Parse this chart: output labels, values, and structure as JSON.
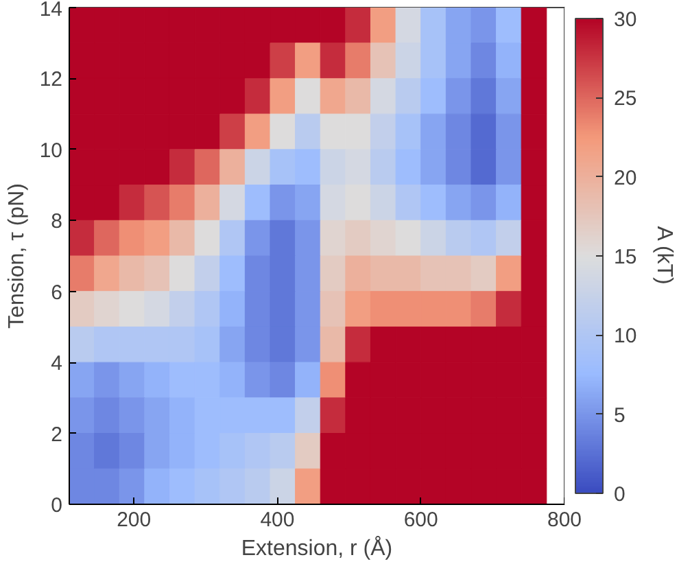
{
  "chart_data": {
    "type": "heatmap",
    "xlabel": "Extension, r (Å)",
    "ylabel": "Tension, τ (pN)",
    "clabel": "A (kT)",
    "x": [
      127.5,
      162.5,
      197.5,
      232.5,
      267.5,
      302.5,
      337.5,
      372.5,
      407.5,
      442.5,
      477.5,
      512.5,
      547.5,
      582.5,
      617.5,
      652.5,
      687.5,
      722.5,
      757.5
    ],
    "y": [
      13.5,
      12.5,
      11.5,
      10.5,
      9.5,
      8.5,
      7.5,
      6.5,
      5.5,
      4.5,
      3.5,
      2.5,
      1.5,
      0.5
    ],
    "cells": [
      [
        30,
        30,
        30,
        30,
        30,
        30,
        30,
        30,
        30,
        30,
        30,
        28,
        22,
        14,
        9,
        6,
        5,
        8,
        30
      ],
      [
        30,
        30,
        30,
        30,
        30,
        30,
        30,
        30,
        27,
        22,
        28,
        24,
        18,
        13,
        9,
        6,
        4,
        7,
        30
      ],
      [
        30,
        30,
        30,
        30,
        30,
        30,
        30,
        28,
        22,
        15,
        21,
        19,
        14,
        11,
        8,
        5,
        3,
        6,
        30
      ],
      [
        30,
        30,
        30,
        30,
        30,
        30,
        27,
        22,
        15,
        11,
        15,
        15,
        12,
        9,
        6,
        4,
        2,
        5,
        30
      ],
      [
        30,
        30,
        30,
        30,
        28,
        25,
        20,
        13,
        9,
        8,
        13,
        14,
        11,
        8,
        6,
        4,
        2,
        5,
        30
      ],
      [
        30,
        30,
        28,
        26,
        24,
        20,
        14,
        8,
        5,
        6,
        14,
        15,
        13,
        10,
        8,
        6,
        5,
        7,
        30
      ],
      [
        28,
        25,
        23,
        22,
        19,
        15,
        10,
        5,
        3,
        5,
        16,
        17,
        16,
        15,
        13,
        11,
        10,
        12,
        30
      ],
      [
        24,
        21,
        19,
        18,
        15,
        12,
        8,
        4,
        3,
        5,
        17,
        20,
        19,
        19,
        18,
        18,
        17,
        22,
        30
      ],
      [
        17,
        16,
        15,
        14,
        12,
        10,
        7,
        4,
        3,
        5,
        18,
        22,
        23,
        23,
        23,
        23,
        24,
        28,
        30
      ],
      [
        11,
        10,
        10,
        10,
        10,
        9,
        6,
        4,
        3,
        5,
        19,
        28,
        30,
        30,
        30,
        30,
        30,
        30,
        30
      ],
      [
        6,
        5,
        6,
        7,
        8,
        8,
        7,
        5,
        4,
        7,
        23,
        30,
        30,
        30,
        30,
        30,
        30,
        30,
        30
      ],
      [
        5,
        4,
        5,
        6,
        7,
        8,
        8,
        8,
        8,
        12,
        28,
        30,
        30,
        30,
        30,
        30,
        30,
        30,
        30
      ],
      [
        4,
        3,
        4,
        6,
        7,
        8,
        9,
        10,
        11,
        17,
        30,
        30,
        30,
        30,
        30,
        30,
        30,
        30,
        30
      ],
      [
        4,
        4,
        5,
        7,
        8,
        9,
        10,
        11,
        13,
        22,
        30,
        30,
        30,
        30,
        30,
        30,
        30,
        30,
        30
      ]
    ],
    "colors": [
      "#3b4cc0",
      "#9abbff",
      "#dddddd",
      "#f49a7b",
      "#b40426"
    ],
    "clim": [
      0,
      30
    ],
    "cticks": [
      0,
      5,
      10,
      15,
      20,
      25,
      30
    ],
    "xlim": [
      110,
      800
    ],
    "xticks": [
      200,
      400,
      600,
      800
    ],
    "ylim": [
      0,
      14
    ],
    "yticks": [
      0,
      2,
      4,
      6,
      8,
      10,
      12,
      14
    ],
    "grid": false
  }
}
